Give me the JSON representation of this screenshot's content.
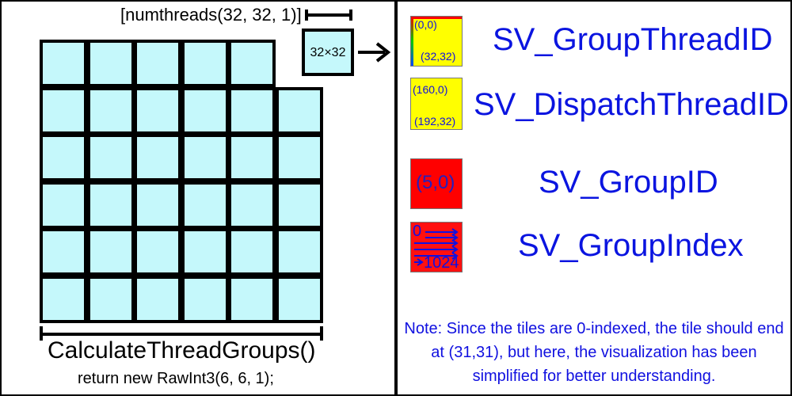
{
  "left_panel": {
    "numthreads_label": "[numthreads(32, 32, 1)]",
    "tile_label": "32×32",
    "grid_rows": 6,
    "grid_cols": 6,
    "calc_label": "CalculateThreadGroups()",
    "return_label": "return new RawInt3(6, 6, 1);",
    "tile_color": "#c5f8fb"
  },
  "legend": {
    "group_thread_id": {
      "top_left": "(0,0)",
      "bottom_right": "(32,32)",
      "name": "SV_GroupThreadID"
    },
    "dispatch_thread_id": {
      "top_left": "(160,0)",
      "bottom_right": "(192,32)",
      "name": "SV_DispatchThreadID"
    },
    "group_id": {
      "value": "(5,0)",
      "name": "SV_GroupID"
    },
    "group_index": {
      "start": "0",
      "end": "1024",
      "name": "SV_GroupIndex"
    }
  },
  "note": "Note: Since the tiles are 0-indexed, the tile should end at (31,31), but here, the visualization has been simplified for better understanding.",
  "colors": {
    "accent_blue": "#0a14e0",
    "yellow": "#ffff00",
    "red": "#ff0000"
  }
}
